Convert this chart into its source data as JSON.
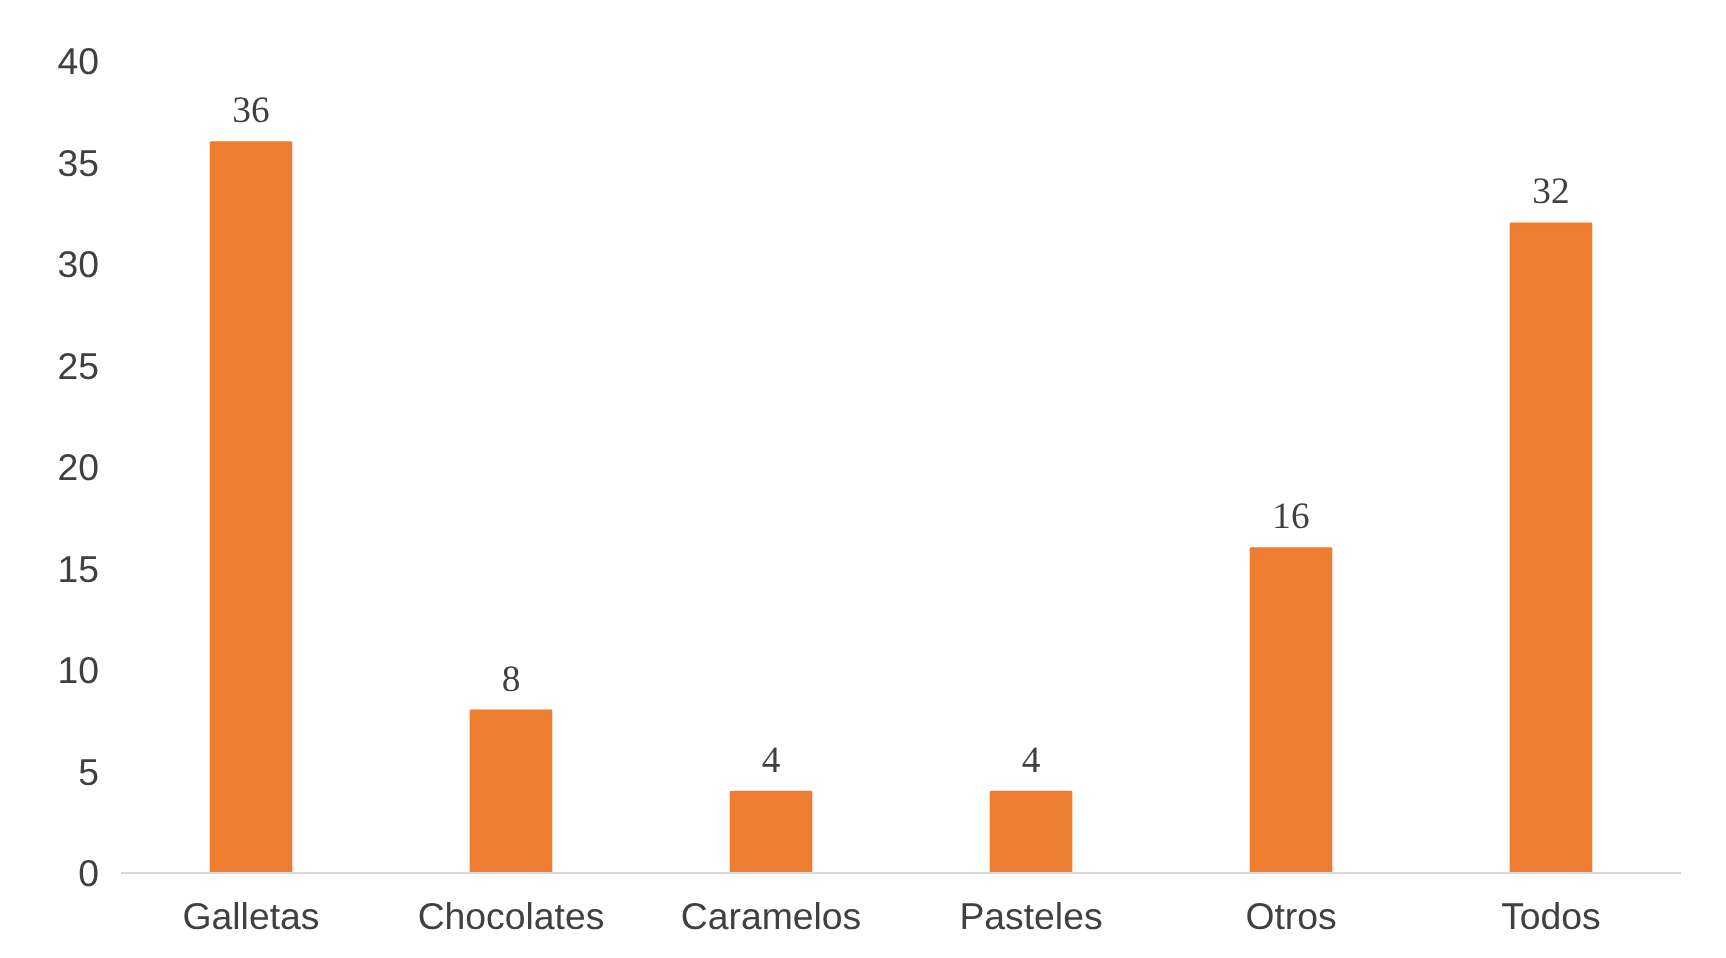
{
  "chart_data": {
    "type": "bar",
    "categories": [
      "Galletas",
      "Chocolates",
      "Caramelos",
      "Pasteles",
      "Otros",
      "Todos"
    ],
    "values": [
      36,
      8,
      4,
      4,
      16,
      32
    ],
    "color": "#ed7d31",
    "ylim": [
      0,
      40
    ],
    "yticks": [
      0,
      5,
      10,
      15,
      20,
      25,
      30,
      35,
      40
    ],
    "grid": false,
    "data_labels": true
  }
}
